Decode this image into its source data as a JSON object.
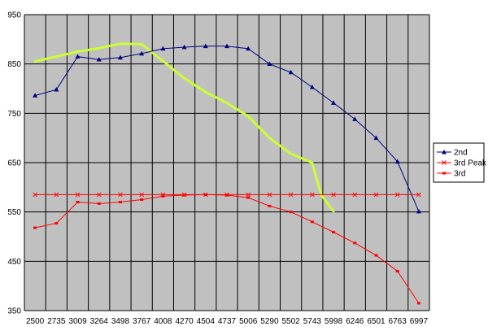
{
  "chart_data": {
    "type": "line",
    "title": "",
    "xlabel": "",
    "ylabel": "",
    "categories": [
      "2500",
      "2735",
      "3009",
      "3264",
      "3498",
      "3767",
      "4008",
      "4270",
      "4504",
      "4737",
      "5006",
      "5290",
      "5502",
      "5743",
      "5998",
      "6246",
      "6501",
      "6763",
      "6997"
    ],
    "ylim": [
      350,
      950
    ],
    "yticks": [
      350,
      450,
      550,
      650,
      750,
      850,
      950
    ],
    "grid": true,
    "legend_position": "right",
    "colors": {
      "plot_background": "#c0c0c0",
      "grid": "#000000",
      "series_2nd": "#000080",
      "series_3rd_peak": "#ff0000",
      "series_3rd": "#ff0000",
      "highlight": "#ccff33"
    },
    "series": [
      {
        "name": "2nd",
        "marker": "triangle",
        "values": [
          786,
          798,
          865,
          859,
          863,
          871,
          881,
          884,
          886,
          886,
          881,
          850,
          833,
          803,
          771,
          738,
          700,
          652,
          551
        ]
      },
      {
        "name": "3rd Peak",
        "marker": "x",
        "values": [
          585,
          585,
          585,
          585,
          585,
          585,
          585,
          585,
          585,
          585,
          585,
          585,
          585,
          585,
          585,
          585,
          585,
          585,
          585
        ]
      },
      {
        "name": "3rd",
        "marker": "dash",
        "values": [
          518,
          527,
          570,
          567,
          570,
          575,
          582,
          584,
          585,
          584,
          579,
          562,
          550,
          530,
          509,
          487,
          462,
          430,
          365
        ]
      }
    ],
    "highlight_curve": {
      "x": [
        2500,
        2735,
        3009,
        3264,
        3498,
        3767,
        4008,
        4270,
        4504,
        4737,
        5006,
        5290,
        5502,
        5743,
        5850,
        5998
      ],
      "y": [
        855,
        865,
        875,
        882,
        891,
        890,
        856,
        821,
        793,
        771,
        744,
        700,
        668,
        650,
        585,
        551
      ]
    }
  }
}
